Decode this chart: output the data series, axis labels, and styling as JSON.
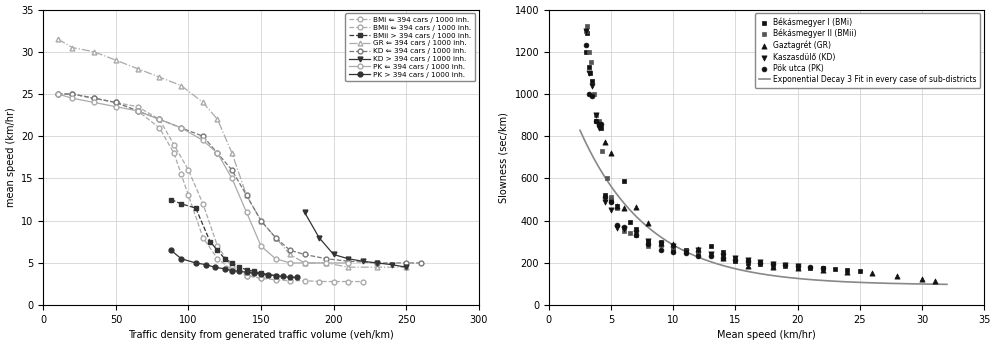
{
  "fig1": {
    "xlabel": "Traffic density from generated traffic volume (veh/km)",
    "ylabel": "mean speed (km/hr)",
    "xlim": [
      0,
      300
    ],
    "ylim": [
      0,
      35
    ],
    "xticks": [
      0,
      50,
      100,
      150,
      200,
      250,
      300
    ],
    "yticks": [
      0,
      5,
      10,
      15,
      20,
      25,
      30,
      35
    ],
    "series": [
      {
        "label": "BMi ⇐ 394 cars / 1000 inh.",
        "color": "#aaaaaa",
        "linestyle": "--",
        "marker": "o",
        "markerfilled": false,
        "x": [
          10,
          20,
          35,
          50,
          65,
          80,
          90,
          100,
          110,
          120,
          130,
          140,
          150,
          160,
          170,
          180,
          190,
          200,
          210,
          220
        ],
        "y": [
          25,
          25,
          24.5,
          24,
          23.5,
          22,
          19,
          16,
          12,
          7,
          4.5,
          3.5,
          3.2,
          3.0,
          2.9,
          2.9,
          2.8,
          2.8,
          2.8,
          2.8
        ]
      },
      {
        "label": "BMii ⇐ 394 cars / 1000 inh.",
        "color": "#aaaaaa",
        "linestyle": "--",
        "marker": "o",
        "markerfilled": false,
        "x": [
          10,
          20,
          35,
          50,
          65,
          80,
          90,
          95,
          100,
          110,
          120,
          130,
          140,
          150
        ],
        "y": [
          25,
          25,
          24.5,
          24,
          23,
          21,
          18,
          15.5,
          13,
          8,
          5.5,
          4.2,
          3.5,
          3.2
        ]
      },
      {
        "label": "BMii > 394 cars / 1000 inh.",
        "color": "#333333",
        "linestyle": "--",
        "marker": "s",
        "markerfilled": true,
        "x": [
          88,
          95,
          105,
          115,
          120,
          125,
          130,
          135,
          140,
          145,
          150,
          155,
          160
        ],
        "y": [
          12.5,
          12.0,
          11.5,
          7.5,
          6.5,
          5.5,
          5.0,
          4.5,
          4.2,
          4.0,
          3.8,
          3.6,
          3.5
        ]
      },
      {
        "label": "GR ⇐ 394 cars / 1000 inh.",
        "color": "#aaaaaa",
        "linestyle": "-.",
        "marker": "^",
        "markerfilled": false,
        "x": [
          10,
          20,
          35,
          50,
          65,
          80,
          95,
          110,
          120,
          130,
          140,
          150,
          160,
          170,
          180,
          195,
          210,
          230,
          250
        ],
        "y": [
          31.5,
          30.5,
          30,
          29,
          28,
          27,
          26,
          24,
          22,
          18,
          13,
          10,
          8,
          6,
          5,
          5,
          4.5,
          4.5,
          4.5
        ]
      },
      {
        "label": "KD ⇐ 394 cars / 1000 inh.",
        "color": "#777777",
        "linestyle": "--",
        "marker": "o",
        "markerfilled": false,
        "x": [
          10,
          20,
          35,
          50,
          65,
          80,
          95,
          110,
          120,
          130,
          140,
          150,
          160,
          170,
          180,
          195,
          210,
          230,
          250,
          260
        ],
        "y": [
          25,
          25,
          24.5,
          24,
          23,
          22,
          21,
          20,
          18,
          16,
          13,
          10,
          8,
          6.5,
          6,
          5.5,
          5.2,
          5,
          5,
          5
        ]
      },
      {
        "label": "KD > 394 cars / 1000 inh.",
        "color": "#333333",
        "linestyle": "-",
        "marker": "v",
        "markerfilled": true,
        "x": [
          180,
          190,
          200,
          210,
          220,
          230,
          240,
          250
        ],
        "y": [
          11,
          8,
          6,
          5.5,
          5.2,
          5.0,
          4.8,
          4.5
        ]
      },
      {
        "label": "PK ⇐ 394 cars / 1000 inh.",
        "color": "#aaaaaa",
        "linestyle": "-",
        "marker": "o",
        "markerfilled": false,
        "x": [
          10,
          20,
          35,
          50,
          65,
          80,
          95,
          110,
          120,
          130,
          140,
          150,
          160,
          170,
          180,
          195,
          210
        ],
        "y": [
          25,
          24.5,
          24,
          23.5,
          23,
          22,
          21,
          19.5,
          18,
          15,
          11,
          7,
          5.5,
          5,
          5,
          5,
          5
        ]
      },
      {
        "label": "PK > 394 cars / 1000 inh.",
        "color": "#333333",
        "linestyle": "-",
        "marker": "o",
        "markerfilled": true,
        "x": [
          88,
          95,
          105,
          112,
          118,
          125,
          130,
          135,
          140,
          145,
          150,
          155,
          160,
          165,
          170,
          175
        ],
        "y": [
          6.5,
          5.5,
          5.0,
          4.8,
          4.5,
          4.3,
          4.1,
          4.0,
          3.9,
          3.8,
          3.7,
          3.6,
          3.5,
          3.4,
          3.3,
          3.3
        ]
      }
    ]
  },
  "fig2": {
    "xlabel": "Mean speed (km/hr)",
    "ylabel": "Slowness (sec/km)",
    "xlim": [
      0,
      35
    ],
    "ylim": [
      0,
      1400
    ],
    "xticks": [
      0,
      5,
      10,
      15,
      20,
      25,
      30,
      35
    ],
    "yticks": [
      0,
      200,
      400,
      600,
      800,
      1000,
      1200,
      1400
    ],
    "scatter_series": [
      {
        "label": "Békásmegyer I (BMi)",
        "marker": "s",
        "color": "#111111",
        "size": 12,
        "x": [
          3.0,
          3.1,
          3.2,
          3.3,
          3.5,
          3.8,
          4.0,
          4.2,
          4.5,
          5.0,
          5.5,
          6.0,
          6.5,
          7.0,
          8.0,
          9.0,
          10.0,
          11.0,
          12.0,
          13.0,
          14.0,
          15.0,
          16.0,
          17.0,
          18.0,
          19.0,
          20.0,
          21.0,
          22.0,
          23.0,
          24.0,
          25.0
        ],
        "y": [
          1200,
          1290,
          1130,
          1100,
          1060,
          870,
          860,
          840,
          520,
          500,
          470,
          590,
          395,
          360,
          300,
          300,
          265,
          260,
          250,
          280,
          250,
          210,
          200,
          195,
          185,
          185,
          180,
          175,
          175,
          170,
          165,
          160
        ]
      },
      {
        "label": "Békásmegyer II (BMii)",
        "marker": "s",
        "color": "#555555",
        "size": 12,
        "x": [
          3.0,
          3.1,
          3.2,
          3.4,
          3.6,
          3.8,
          4.0,
          4.3,
          4.7,
          5.0,
          5.5,
          6.0,
          6.5,
          7.0,
          8.0,
          9.0,
          10.0,
          11.0,
          12.0,
          13.0,
          14.0,
          15.0,
          16.0,
          17.0,
          18.0,
          19.0,
          20.0
        ],
        "y": [
          1300,
          1320,
          1200,
          1150,
          1000,
          900,
          870,
          730,
          600,
          510,
          460,
          350,
          340,
          330,
          280,
          285,
          270,
          255,
          240,
          240,
          235,
          225,
          210,
          200,
          190,
          185,
          180
        ]
      },
      {
        "label": "Gaztagrét (GR)",
        "marker": "^",
        "color": "#111111",
        "size": 14,
        "x": [
          4.5,
          5.0,
          5.5,
          6.0,
          7.0,
          8.0,
          9.0,
          10.0,
          12.0,
          14.0,
          16.0,
          18.0,
          20.0,
          22.0,
          24.0,
          26.0,
          28.0,
          30.0,
          31.0
        ],
        "y": [
          775,
          720,
          470,
          460,
          465,
          390,
          295,
          290,
          265,
          225,
          185,
          180,
          175,
          165,
          155,
          150,
          140,
          125,
          115
        ]
      },
      {
        "label": "Kaszasdülő (KD)",
        "marker": "v",
        "color": "#111111",
        "size": 14,
        "x": [
          3.0,
          3.2,
          3.5,
          3.8,
          4.0,
          4.5,
          5.0,
          5.5,
          6.0,
          7.0,
          8.0,
          9.0,
          10.0,
          11.0,
          12.0,
          13.0,
          14.0,
          15.0,
          16.0,
          17.0,
          18.0,
          19.0,
          20.0
        ],
        "y": [
          1300,
          1100,
          1040,
          900,
          840,
          490,
          450,
          365,
          360,
          340,
          305,
          290,
          280,
          250,
          260,
          240,
          235,
          225,
          215,
          205,
          195,
          190,
          185
        ]
      },
      {
        "label": "Pök utca (PK)",
        "marker": "o",
        "color": "#111111",
        "size": 12,
        "x": [
          3.0,
          3.2,
          3.5,
          3.8,
          4.0,
          4.2,
          4.5,
          5.0,
          5.5,
          6.0,
          7.0,
          8.0,
          9.0,
          10.0,
          11.0,
          12.0,
          13.0,
          14.0,
          15.0,
          16.0,
          17.0,
          18.0,
          19.0,
          20.0,
          21.0,
          22.0
        ],
        "y": [
          1230,
          1000,
          990,
          870,
          860,
          860,
          510,
          490,
          380,
          370,
          330,
          290,
          260,
          250,
          245,
          235,
          235,
          225,
          215,
          210,
          200,
          195,
          190,
          185,
          180,
          175
        ]
      }
    ],
    "fit_curve": {
      "label": "Exponential Decay 3 Fit in every case of sub-districts",
      "color": "#888888",
      "a": 1150,
      "b": 0.18,
      "c": 95,
      "x_start": 2.5,
      "x_end": 32
    }
  }
}
